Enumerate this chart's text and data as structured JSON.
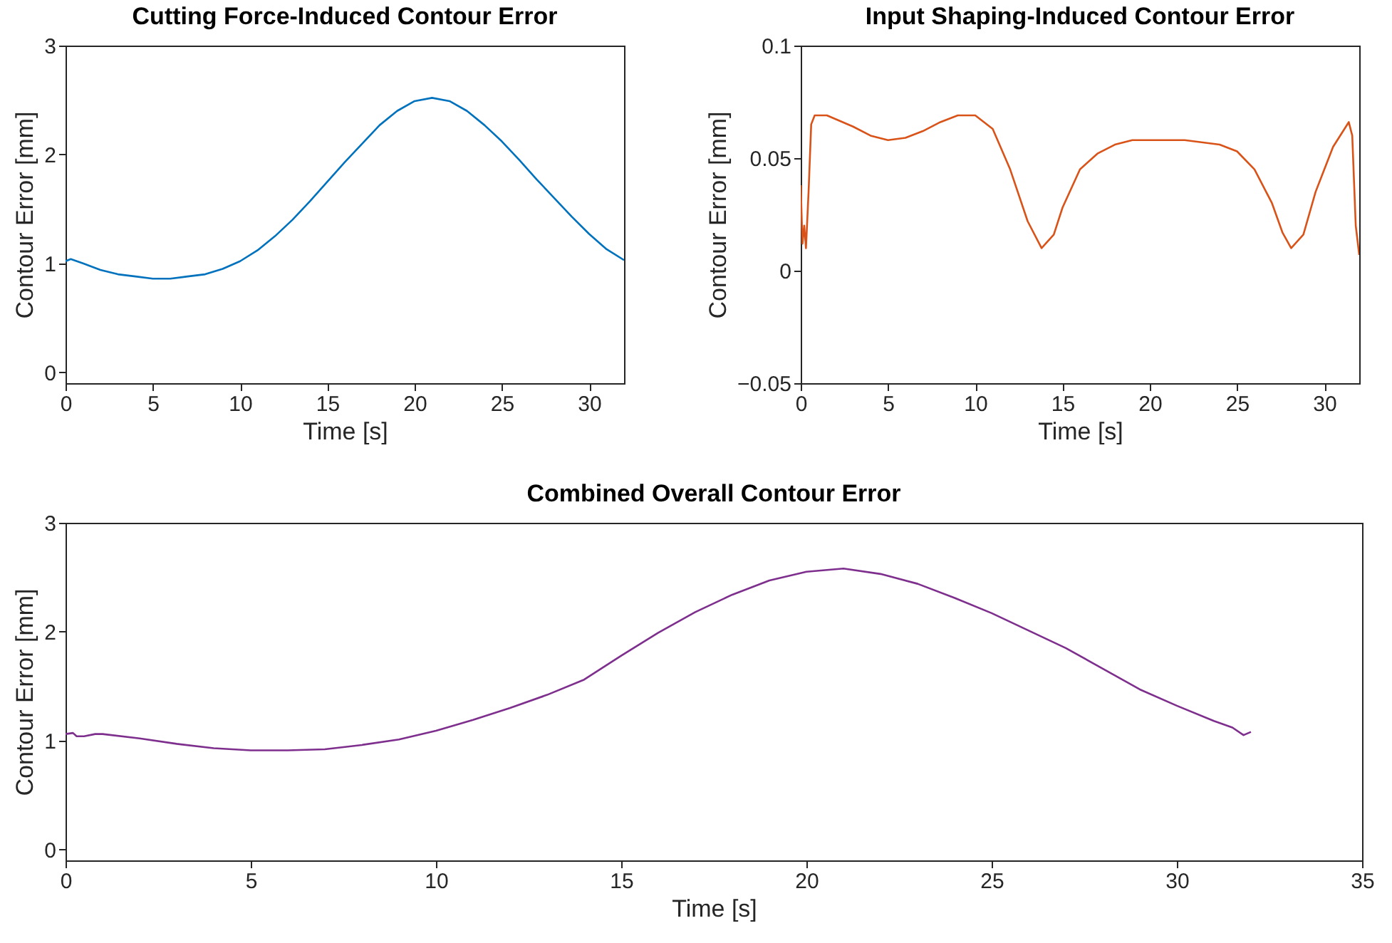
{
  "chart_data": [
    {
      "type": "line",
      "title": "Cutting Force-Induced Contour Error",
      "xlabel": "Time [s]",
      "ylabel": "Contour Error [mm]",
      "xlim": [
        0,
        32
      ],
      "ylim": [
        -0.1,
        3
      ],
      "xticks": [
        0,
        5,
        10,
        15,
        20,
        25,
        30
      ],
      "yticks": [
        0,
        1,
        2,
        3
      ],
      "series": [
        {
          "color": "#0072bd",
          "x": [
            0,
            0.3,
            1,
            2,
            3,
            4,
            5,
            6,
            7,
            8,
            9,
            10,
            11,
            12,
            13,
            14,
            15,
            16,
            17,
            18,
            19,
            20,
            21,
            22,
            23,
            24,
            25,
            26,
            27,
            28,
            29,
            30,
            31,
            32
          ],
          "values": [
            1.02,
            1.04,
            1.0,
            0.94,
            0.9,
            0.88,
            0.86,
            0.86,
            0.88,
            0.9,
            0.95,
            1.02,
            1.12,
            1.25,
            1.4,
            1.57,
            1.75,
            1.93,
            2.1,
            2.27,
            2.4,
            2.49,
            2.52,
            2.49,
            2.4,
            2.27,
            2.12,
            1.95,
            1.77,
            1.6,
            1.43,
            1.27,
            1.13,
            1.03
          ]
        }
      ]
    },
    {
      "type": "line",
      "title": "Input Shaping-Induced Contour Error",
      "xlabel": "Time [s]",
      "ylabel": "Contour Error [mm]",
      "xlim": [
        0,
        32
      ],
      "ylim": [
        -0.05,
        0.1
      ],
      "xticks": [
        0,
        5,
        10,
        15,
        20,
        25,
        30
      ],
      "yticks": [
        -0.05,
        0,
        0.05,
        0.1
      ],
      "series": [
        {
          "color": "#d95319",
          "x": [
            0,
            0.1,
            0.2,
            0.3,
            0.45,
            0.6,
            0.8,
            1.5,
            3,
            4,
            5,
            6,
            7,
            8,
            9,
            10,
            11,
            12,
            13,
            13.8,
            14.5,
            15,
            16,
            17,
            18,
            19,
            20,
            22,
            24,
            25,
            26,
            27,
            27.6,
            28.1,
            28.8,
            29.5,
            30.5,
            31.4,
            31.6,
            31.8,
            32
          ],
          "values": [
            0.038,
            0.012,
            0.02,
            0.01,
            0.035,
            0.065,
            0.069,
            0.069,
            0.064,
            0.06,
            0.058,
            0.059,
            0.062,
            0.066,
            0.069,
            0.069,
            0.063,
            0.045,
            0.022,
            0.01,
            0.016,
            0.028,
            0.045,
            0.052,
            0.056,
            0.058,
            0.058,
            0.058,
            0.056,
            0.053,
            0.045,
            0.03,
            0.017,
            0.01,
            0.016,
            0.035,
            0.055,
            0.066,
            0.06,
            0.02,
            0.007
          ]
        }
      ]
    },
    {
      "type": "line",
      "title": "Combined Overall Contour Error",
      "xlabel": "Time [s]",
      "ylabel": "Contour Error [mm]",
      "xlim": [
        0,
        35
      ],
      "ylim": [
        -0.1,
        3
      ],
      "xticks": [
        0,
        5,
        10,
        15,
        20,
        25,
        30,
        35
      ],
      "yticks": [
        0,
        1,
        2,
        3
      ],
      "series": [
        {
          "color": "#7e2f8e",
          "x": [
            0,
            0.2,
            0.3,
            0.5,
            0.8,
            1,
            2,
            3,
            4,
            5,
            6,
            7,
            8,
            9,
            10,
            11,
            12,
            13,
            14,
            15,
            16,
            17,
            18,
            19,
            20,
            21,
            22,
            23,
            24,
            25,
            26,
            27,
            28,
            29,
            30,
            31,
            31.5,
            31.8,
            32
          ],
          "values": [
            1.06,
            1.07,
            1.04,
            1.04,
            1.06,
            1.06,
            1.02,
            0.97,
            0.93,
            0.91,
            0.91,
            0.92,
            0.96,
            1.01,
            1.09,
            1.19,
            1.3,
            1.42,
            1.56,
            1.78,
            1.99,
            2.18,
            2.34,
            2.47,
            2.55,
            2.58,
            2.53,
            2.44,
            2.31,
            2.17,
            2.01,
            1.85,
            1.66,
            1.47,
            1.32,
            1.18,
            1.12,
            1.05,
            1.08
          ]
        }
      ]
    }
  ]
}
